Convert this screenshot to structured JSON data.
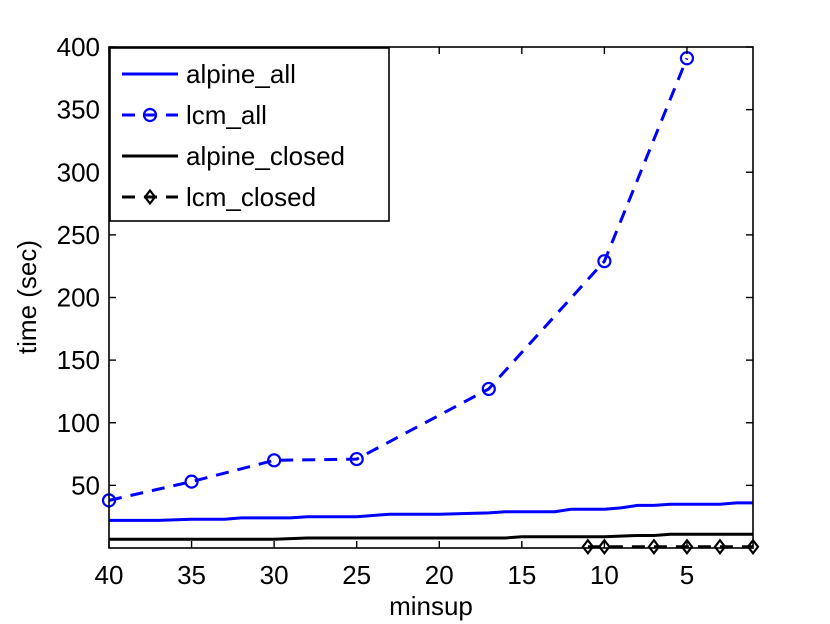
{
  "chart_data": {
    "type": "line",
    "xlabel": "minsup",
    "ylabel": "time (sec)",
    "xlim": [
      40,
      1
    ],
    "x_reversed": true,
    "ylim": [
      0,
      400
    ],
    "xticks": [
      40,
      35,
      30,
      25,
      20,
      15,
      10,
      5
    ],
    "yticks": [
      50,
      100,
      150,
      200,
      250,
      300,
      350,
      400
    ],
    "grid": false,
    "legend_position": "top-left",
    "series": [
      {
        "name": "alpine_all",
        "color": "#0000ff",
        "style": "solid",
        "marker": "none",
        "x": [
          40,
          37,
          35,
          33,
          32,
          30,
          29,
          28,
          25,
          23,
          20,
          17,
          16,
          13,
          12,
          10,
          9,
          8,
          7,
          6,
          5,
          4,
          3,
          2,
          1
        ],
        "y": [
          22,
          22,
          23,
          23,
          24,
          24,
          24,
          25,
          25,
          27,
          27,
          28,
          29,
          29,
          31,
          31,
          32,
          34,
          34,
          35,
          35,
          35,
          35,
          36,
          36
        ]
      },
      {
        "name": "lcm_all",
        "color": "#0000ff",
        "style": "dashed",
        "marker": "circle",
        "x": [
          40,
          35,
          30,
          25,
          17,
          10,
          5
        ],
        "y": [
          38,
          53,
          70,
          71,
          127,
          229,
          391
        ]
      },
      {
        "name": "alpine_closed",
        "color": "#000000",
        "style": "solid",
        "marker": "none",
        "x": [
          40,
          30,
          28,
          25,
          20,
          16,
          15,
          10,
          8,
          7,
          6,
          5,
          1
        ],
        "y": [
          7,
          7,
          8,
          8,
          8,
          8,
          9,
          9,
          10,
          10,
          11,
          11,
          11
        ]
      },
      {
        "name": "lcm_closed",
        "color": "#000000",
        "style": "dashed",
        "marker": "diamond",
        "x": [
          11,
          10,
          7,
          5,
          3,
          1
        ],
        "y": [
          1,
          1,
          1,
          1,
          1,
          1
        ]
      }
    ]
  }
}
